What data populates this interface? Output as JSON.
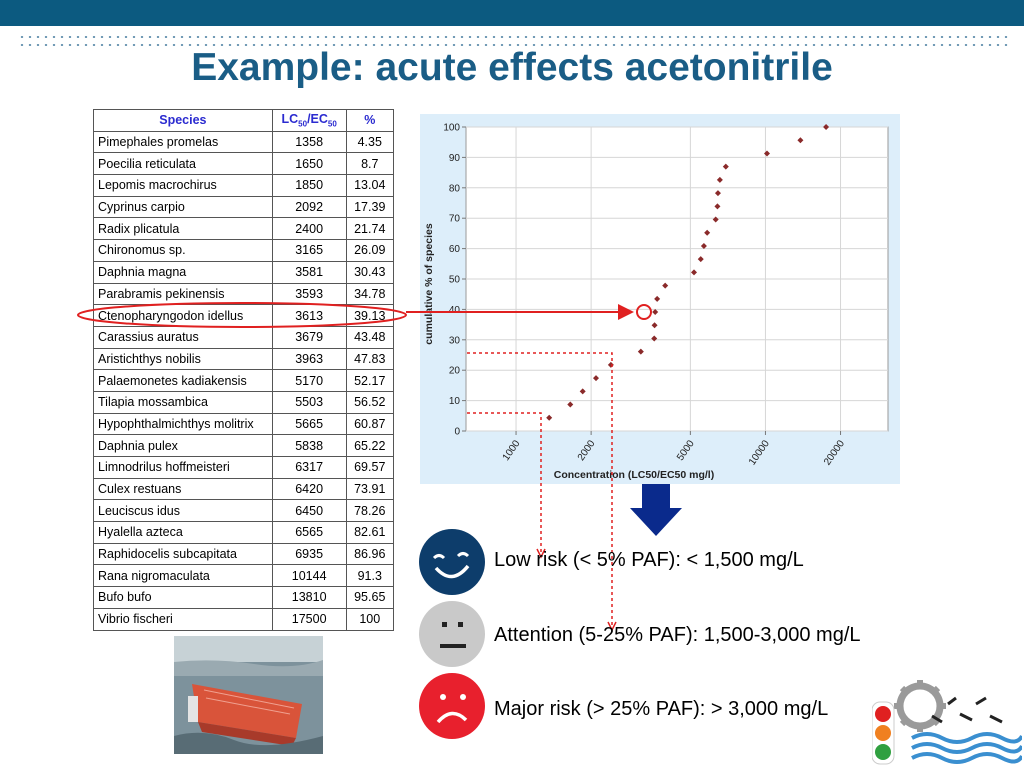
{
  "title": "Example: acute effects acetonitrile",
  "table": {
    "headers": {
      "species": "Species",
      "lc": "LC",
      "lc_sub1": "50",
      "lc_sep": "/EC",
      "lc_sub2": "50",
      "pct": "%"
    },
    "rows": [
      {
        "species": "Pimephales promelas",
        "lc": "1358",
        "pct": "4.35"
      },
      {
        "species": "Poecilia reticulata",
        "lc": "1650",
        "pct": "8.7"
      },
      {
        "species": "Lepomis macrochirus",
        "lc": "1850",
        "pct": "13.04"
      },
      {
        "species": "Cyprinus carpio",
        "lc": "2092",
        "pct": "17.39"
      },
      {
        "species": "Radix plicatula",
        "lc": "2400",
        "pct": "21.74"
      },
      {
        "species": "Chironomus sp.",
        "lc": "3165",
        "pct": "26.09"
      },
      {
        "species": "Daphnia magna",
        "lc": "3581",
        "pct": "30.43"
      },
      {
        "species": "Parabramis pekinensis",
        "lc": "3593",
        "pct": "34.78"
      },
      {
        "species": "Ctenopharyngodon idellus",
        "lc": "3613",
        "pct": "39.13"
      },
      {
        "species": "Carassius auratus",
        "lc": "3679",
        "pct": "43.48"
      },
      {
        "species": "Aristichthys nobilis",
        "lc": "3963",
        "pct": "47.83"
      },
      {
        "species": "Palaemonetes kadiakensis",
        "lc": "5170",
        "pct": "52.17"
      },
      {
        "species": "Tilapia mossambica",
        "lc": "5503",
        "pct": "56.52"
      },
      {
        "species": "Hypophthalmichthys molitrix",
        "lc": "5665",
        "pct": "60.87"
      },
      {
        "species": "Daphnia pulex",
        "lc": "5838",
        "pct": "65.22"
      },
      {
        "species": "Limnodrilus hoffmeisteri",
        "lc": "6317",
        "pct": "69.57"
      },
      {
        "species": "Culex restuans",
        "lc": "6420",
        "pct": "73.91"
      },
      {
        "species": "Leuciscus idus",
        "lc": "6450",
        "pct": "78.26"
      },
      {
        "species": "Hyalella azteca",
        "lc": "6565",
        "pct": "82.61"
      },
      {
        "species": "Raphidocelis subcapitata",
        "lc": "6935",
        "pct": "86.96"
      },
      {
        "species": "Rana nigromaculata",
        "lc": "10144",
        "pct": "91.3"
      },
      {
        "species": "Bufo bufo",
        "lc": "13810",
        "pct": "95.65"
      },
      {
        "species": "Vibrio fischeri",
        "lc": "17500",
        "pct": "100"
      }
    ]
  },
  "chart_data": {
    "type": "scatter",
    "xlabel": "Concentration (LC50/EC50 mg/l)",
    "ylabel": "cumulative % of species",
    "x_scale": "log",
    "xlim": [
      630,
      31000
    ],
    "ylim": [
      0,
      100
    ],
    "x_ticks": [
      "1000",
      "2000",
      "5000",
      "10000",
      "20000"
    ],
    "y_ticks": [
      "0",
      "10",
      "20",
      "30",
      "40",
      "50",
      "60",
      "70",
      "80",
      "90",
      "100"
    ],
    "x": [
      1358,
      1650,
      1850,
      2092,
      2400,
      3165,
      3581,
      3593,
      3613,
      3679,
      3963,
      5170,
      5503,
      5665,
      5838,
      6317,
      6420,
      6450,
      6565,
      6935,
      10144,
      13810,
      17500
    ],
    "y": [
      4.35,
      8.7,
      13.04,
      17.39,
      21.74,
      26.09,
      30.43,
      34.78,
      39.13,
      43.48,
      47.83,
      52.17,
      56.52,
      60.87,
      65.22,
      69.57,
      73.91,
      78.26,
      82.61,
      86.96,
      91.3,
      95.65,
      100
    ],
    "point_color": "#8a2a2a",
    "grid": true
  },
  "risk_levels": [
    {
      "label": "Low risk (< 5% PAF): < 1,500 mg/L",
      "face": "smiling-face-icon",
      "color": "#0d3d6b"
    },
    {
      "label": "Attention (5-25% PAF): 1,500-3,000 mg/L",
      "face": "neutral-face-icon",
      "color": "#c9c9c9"
    },
    {
      "label": "Major risk (> 25% PAF): > 3,000 mg/L",
      "face": "frowning-face-icon",
      "color": "#e8202d"
    }
  ],
  "colors": {
    "title": "#1a5d86",
    "top_bar": "#0c5a80",
    "highlight": "#e02020",
    "arrow": "#0a2a8c"
  },
  "icons": {
    "ship_photo": "capsized-ship-image",
    "logo": "gear-traffic-light-logo",
    "arrow": "down-arrow-icon"
  }
}
